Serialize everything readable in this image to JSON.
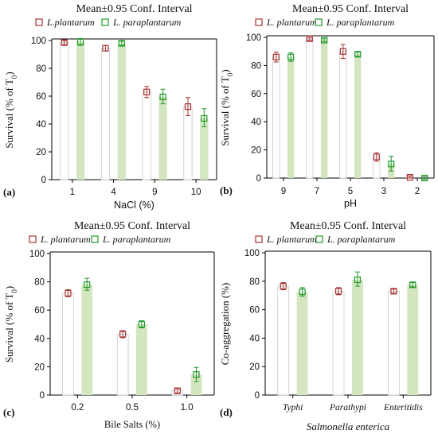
{
  "colors": {
    "plantarum_marker": "#a83232",
    "paraplantarum_marker": "#1f9a2a",
    "plantarum_bar_fill": "#ffffff",
    "plantarum_bar_stroke": "#c9c9c9",
    "paraplantarum_bar_fill": "#d4e6c0",
    "axis": "#000000"
  },
  "chart_data": [
    {
      "type": "bar",
      "panel_label": "(a)",
      "title": "Mean±0.95 Conf. Interval",
      "legend": [
        "L.plantarum",
        "L. paraplantarum"
      ],
      "legend_position": "top",
      "xlabel": "NaCl (%)",
      "ylabel_main": "Survival (% of T",
      "ylabel_sub": "0",
      "ylabel_end": ")",
      "ylim": [
        0,
        100
      ],
      "yticks": [
        "0",
        "20",
        "40",
        "60",
        "80",
        "100"
      ],
      "categories": [
        "1",
        "4",
        "9",
        "10"
      ],
      "series": [
        {
          "values": [
            98.5,
            94.5,
            63,
            52.5
          ],
          "err_low": [
            97,
            92.5,
            59,
            46
          ],
          "err_high": [
            100,
            96.5,
            67,
            59
          ]
        },
        {
          "values": [
            99,
            98,
            59.5,
            44
          ],
          "err_low": [
            96.5,
            96.5,
            54.5,
            38
          ],
          "err_high": [
            101.5,
            99.5,
            65,
            51
          ]
        }
      ],
      "grid": false
    },
    {
      "type": "bar",
      "panel_label": "(b)",
      "title": "Mean±0.95 Conf. Interval",
      "legend": [
        "L. plantarum",
        "L. paraplantarum"
      ],
      "legend_position": "top",
      "xlabel": "pH",
      "ylabel_main": "Survival (% of T",
      "ylabel_sub": "0",
      "ylabel_end": ")",
      "ylim": [
        0,
        100
      ],
      "yticks": [
        "0",
        "20",
        "40",
        "60",
        "80",
        "100"
      ],
      "categories": [
        "9",
        "7",
        "5",
        "3",
        "2"
      ],
      "series": [
        {
          "values": [
            86,
            99,
            90,
            15,
            0.5
          ],
          "err_low": [
            82.5,
            98,
            85,
            12,
            0
          ],
          "err_high": [
            89.5,
            100,
            95,
            18,
            1.5
          ]
        },
        {
          "values": [
            86,
            98,
            88,
            10,
            0
          ],
          "err_low": [
            83,
            97,
            86.5,
            5,
            -1
          ],
          "err_high": [
            89,
            99,
            89.5,
            15.5,
            1
          ]
        }
      ],
      "grid": false
    },
    {
      "type": "bar",
      "panel_label": "(c)",
      "title": "Mean±0.95 Conf. Interval",
      "legend": [
        "L. plantarum",
        "L. paraplantarum"
      ],
      "legend_position": "top",
      "xlabel": "Bile Salts (%)",
      "ylabel_main": "Survival (% of T",
      "ylabel_sub": "0",
      "ylabel_end": ")",
      "ylim": [
        0,
        100
      ],
      "yticks": [
        "0",
        "20",
        "40",
        "60",
        "80",
        "100"
      ],
      "categories": [
        "0.2",
        "0.5",
        "1.0"
      ],
      "series": [
        {
          "values": [
            72,
            43,
            3
          ],
          "err_low": [
            69.5,
            40.5,
            1.5
          ],
          "err_high": [
            74.5,
            45.5,
            4.5
          ]
        },
        {
          "values": [
            78,
            50,
            14.5
          ],
          "err_low": [
            74,
            47.5,
            9.5
          ],
          "err_high": [
            82.5,
            52.5,
            19.5
          ]
        }
      ],
      "grid": false
    },
    {
      "type": "bar",
      "panel_label": "(d)",
      "title": "Mean±0.95 Conf. Interval",
      "legend": [
        "L. plantarum",
        "L. paraplantarum"
      ],
      "legend_position": "top",
      "xlabel": "Salmonella enterica",
      "ylabel_main": "Co-aggregation (%)",
      "ylabel_sub": "",
      "ylabel_end": "",
      "ylim": [
        0,
        100
      ],
      "yticks": [
        "0",
        "20",
        "40",
        "60",
        "80",
        "100"
      ],
      "categories": [
        "Typhi",
        "Parathypi",
        "Enteritidis"
      ],
      "series": [
        {
          "values": [
            76.5,
            73,
            73
          ],
          "err_low": [
            74,
            70.5,
            71.5
          ],
          "err_high": [
            79,
            75.5,
            74.5
          ]
        },
        {
          "values": [
            72.5,
            81,
            77.5
          ],
          "err_low": [
            69.5,
            76.5,
            76
          ],
          "err_high": [
            75.5,
            86.5,
            79
          ]
        }
      ],
      "grid": false
    }
  ]
}
